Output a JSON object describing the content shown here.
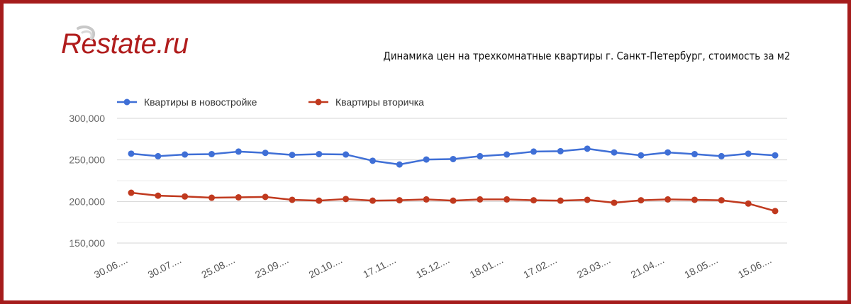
{
  "header": {
    "logo_text": "Restate.ru",
    "chart_title": "Динамика цен на трехкомнатные квартиры г. Санкт-Петербург, стоимость за м2"
  },
  "colors": {
    "frame": "#a51c1c",
    "logo": "#b01c1c",
    "series_new": "#3f6fd6",
    "series_secondary": "#c0391e",
    "grid": "#dddddd"
  },
  "chart_data": {
    "type": "line",
    "title": "Динамика цен на трехкомнатные квартиры г. Санкт-Петербург, стоимость за м2",
    "xlabel": "",
    "ylabel": "",
    "ylim": [
      150000,
      300000
    ],
    "yticks": [
      150000,
      200000,
      250000,
      300000
    ],
    "ytick_labels": [
      "150,000",
      "200,000",
      "250,000",
      "300,000"
    ],
    "xtick_labels": [
      "30.06....",
      "30.07....",
      "25.08....",
      "23.09....",
      "20.10....",
      "17.11....",
      "15.12....",
      "18.01....",
      "17.02....",
      "23.03....",
      "21.04....",
      "18.05....",
      "15.06...."
    ],
    "xtick_indices": [
      0,
      2,
      4,
      6,
      8,
      10,
      12,
      14,
      16,
      18,
      20,
      22,
      24
    ],
    "legend_position": "top-left",
    "series": [
      {
        "name": "Квартиры в новостройке",
        "color": "#3f6fd6",
        "values": [
          257500,
          254500,
          256500,
          257000,
          260000,
          258500,
          256000,
          257000,
          256500,
          249000,
          244500,
          250500,
          251000,
          254500,
          256500,
          260000,
          260500,
          263500,
          259000,
          255500,
          259000,
          257000,
          254500,
          257500,
          255500
        ]
      },
      {
        "name": "Квартиры вторичка",
        "color": "#c0391e",
        "values": [
          210500,
          207000,
          206000,
          204500,
          205000,
          205500,
          202000,
          201000,
          203000,
          201000,
          201500,
          202500,
          201000,
          202500,
          202500,
          201500,
          201000,
          202000,
          198500,
          201500,
          202500,
          202000,
          201500,
          197500,
          188500
        ]
      }
    ]
  }
}
